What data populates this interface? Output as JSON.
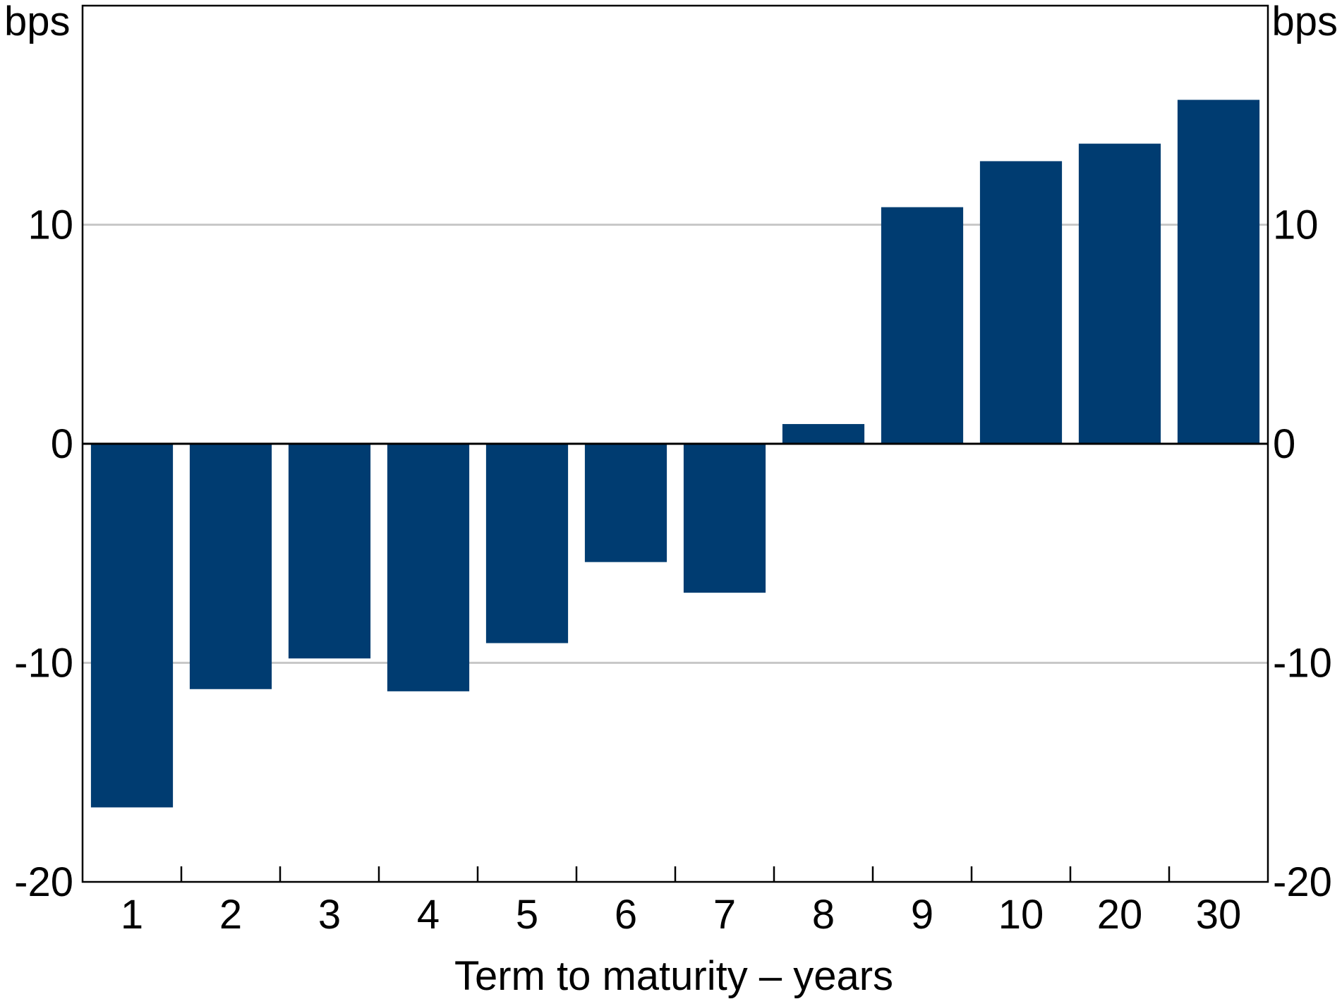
{
  "chart_data": {
    "type": "bar",
    "title": "",
    "xlabel": "Term to maturity – years",
    "ylabel_left": "bps",
    "ylabel_right": "bps",
    "categories": [
      "1",
      "2",
      "3",
      "4",
      "5",
      "6",
      "7",
      "8",
      "9",
      "10",
      "20",
      "30"
    ],
    "values": [
      -16.6,
      -11.2,
      -9.8,
      -11.3,
      -9.1,
      -5.4,
      -6.8,
      0.9,
      10.8,
      12.9,
      13.7,
      15.7
    ],
    "ylim": [
      -20,
      20
    ],
    "yticks": [
      -20,
      -10,
      0,
      10
    ],
    "ytick_labels": [
      "-20",
      "-10",
      "0",
      "10"
    ],
    "gridlines": [
      -10,
      10
    ],
    "grid": true,
    "legend": "none",
    "colors": {
      "bar": "#003c71",
      "gridline": "#c8c8c8",
      "axis": "#000000"
    }
  }
}
